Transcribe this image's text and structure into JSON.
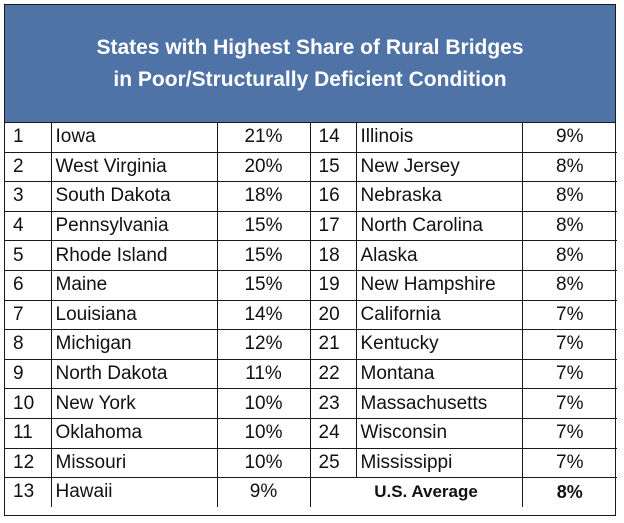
{
  "chart_data": {
    "type": "table",
    "title_line1": "States with Highest Share of Rural Bridges",
    "title_line2": "in Poor/Structurally Deficient Condition",
    "left_rows": [
      {
        "rank": "1",
        "state": "Iowa",
        "value": "21%"
      },
      {
        "rank": "2",
        "state": "West Virginia",
        "value": "20%"
      },
      {
        "rank": "3",
        "state": "South Dakota",
        "value": "18%"
      },
      {
        "rank": "4",
        "state": "Pennsylvania",
        "value": "15%"
      },
      {
        "rank": "5",
        "state": "Rhode Island",
        "value": "15%"
      },
      {
        "rank": "6",
        "state": "Maine",
        "value": "15%"
      },
      {
        "rank": "7",
        "state": "Louisiana",
        "value": "14%"
      },
      {
        "rank": "8",
        "state": "Michigan",
        "value": "12%"
      },
      {
        "rank": "9",
        "state": "North Dakota",
        "value": "11%"
      },
      {
        "rank": "10",
        "state": "New York",
        "value": "10%"
      },
      {
        "rank": "11",
        "state": "Oklahoma",
        "value": "10%"
      },
      {
        "rank": "12",
        "state": "Missouri",
        "value": "10%"
      },
      {
        "rank": "13",
        "state": "Hawaii",
        "value": "9%"
      }
    ],
    "right_rows": [
      {
        "rank": "14",
        "state": "Illinois",
        "value": "9%"
      },
      {
        "rank": "15",
        "state": "New Jersey",
        "value": "8%"
      },
      {
        "rank": "16",
        "state": "Nebraska",
        "value": "8%"
      },
      {
        "rank": "17",
        "state": "North Carolina",
        "value": "8%"
      },
      {
        "rank": "18",
        "state": "Alaska",
        "value": "8%"
      },
      {
        "rank": "19",
        "state": "New Hampshire",
        "value": "8%"
      },
      {
        "rank": "20",
        "state": "California",
        "value": "7%"
      },
      {
        "rank": "21",
        "state": "Kentucky",
        "value": "7%"
      },
      {
        "rank": "22",
        "state": "Montana",
        "value": "7%"
      },
      {
        "rank": "23",
        "state": "Massachusetts",
        "value": "7%"
      },
      {
        "rank": "24",
        "state": "Wisconsin",
        "value": "7%"
      },
      {
        "rank": "25",
        "state": "Mississippi",
        "value": "7%"
      }
    ],
    "average": {
      "label": "U.S. Average",
      "value": "8%"
    },
    "header_color": "#4f73a6"
  }
}
